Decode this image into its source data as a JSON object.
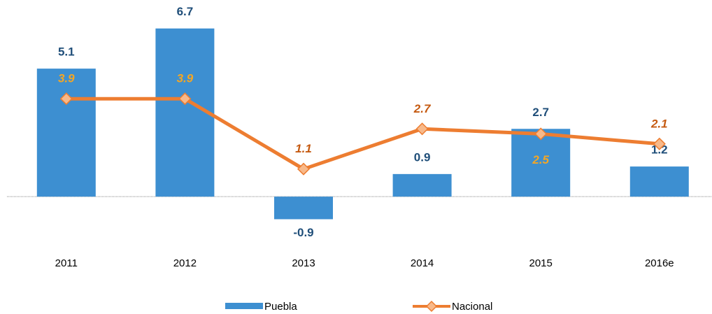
{
  "chart_data": {
    "type": "bar_line",
    "categories": [
      "2011",
      "2012",
      "2013",
      "2014",
      "2015",
      "2016e"
    ],
    "series": [
      {
        "name": "Puebla",
        "type": "bar",
        "color": "#3d8fd1",
        "values": [
          5.1,
          6.7,
          -0.9,
          0.9,
          2.7,
          1.2
        ]
      },
      {
        "name": "Nacional",
        "type": "line",
        "color": "#ed7d31",
        "values": [
          3.9,
          3.9,
          1.1,
          2.7,
          2.5,
          2.1
        ]
      }
    ],
    "ylim": [
      -1.5,
      7.5
    ],
    "grid": false,
    "legend": "bottom"
  }
}
